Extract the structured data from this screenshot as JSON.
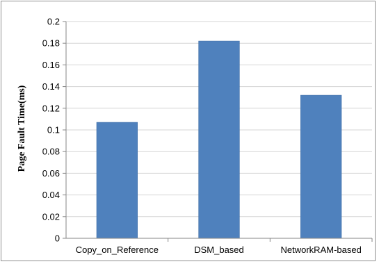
{
  "chart_data": {
    "type": "bar",
    "title": "",
    "xlabel": "",
    "ylabel": "Page Fault Time(ms)",
    "categories": [
      "Copy_on_Reference",
      "DSM_based",
      "NetworkRAM-based"
    ],
    "values": [
      0.107,
      0.182,
      0.132
    ],
    "ylim": [
      0,
      0.2
    ],
    "yticks": [
      "0",
      "0.02",
      "0.04",
      "0.06",
      "0.08",
      "0.1",
      "0.12",
      "0.14",
      "0.16",
      "0.18",
      "0.2"
    ],
    "grid": true,
    "legend": "none",
    "colors": {
      "bar": "#4f81bd",
      "bar_edge": "#3f6fa8",
      "grid": "#d4d4d4",
      "axis": "#868686",
      "text": "#000000"
    }
  }
}
